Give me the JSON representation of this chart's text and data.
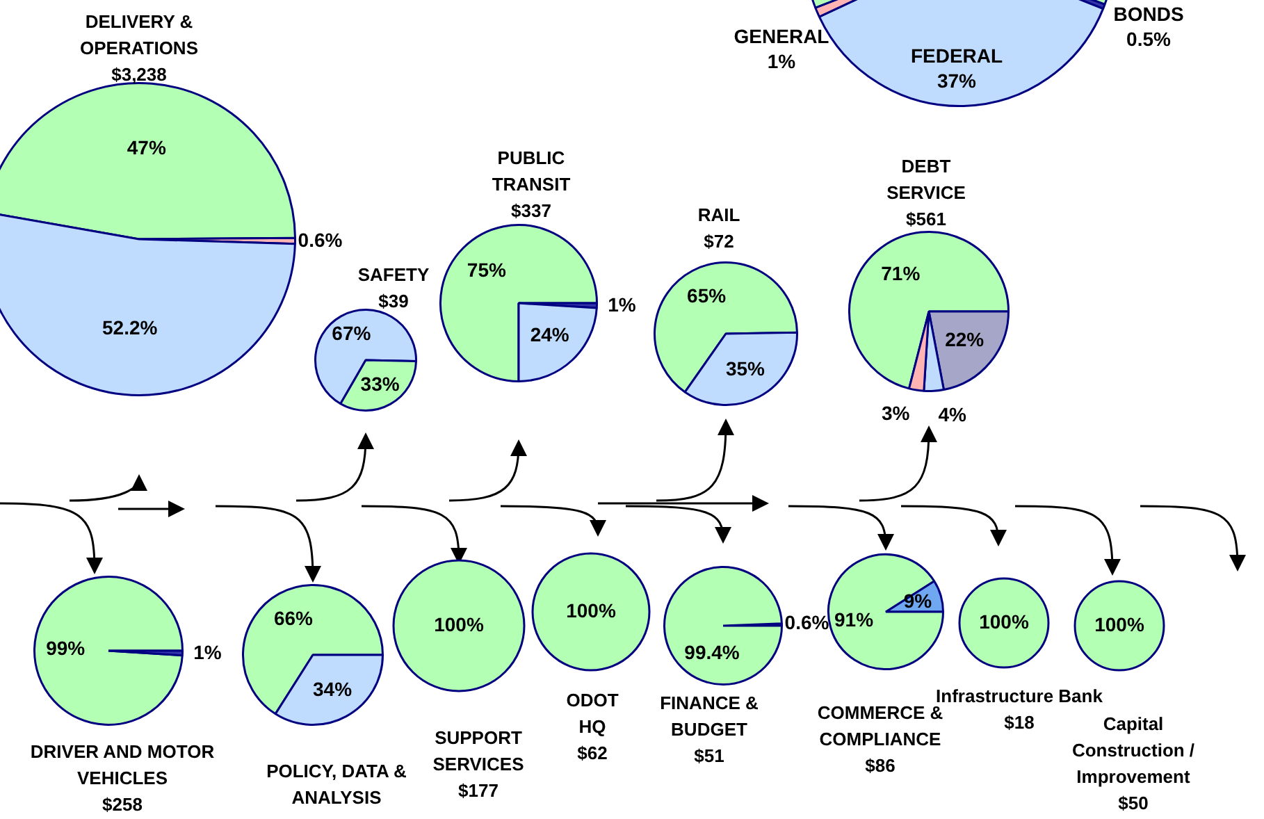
{
  "chart_data": [
    {
      "type": "pie",
      "categories": [
        "BONDS",
        "FEDERAL",
        "GENERAL",
        null
      ],
      "values": [
        0.5,
        37,
        1,
        61.5
      ],
      "value_labels": [
        "0.5%",
        "37%",
        "1%",
        null
      ],
      "colors": [
        "#3333aa",
        "#bfdcff",
        "#ffb3b3",
        "#b3ffb3"
      ]
    },
    {
      "type": "pie",
      "title": "DELIVERY & OPERATIONS",
      "subtitle": "$3,238",
      "categories": [
        null,
        null,
        null
      ],
      "values": [
        47,
        0.6,
        52.2
      ],
      "value_labels": [
        "47%",
        "0.6%",
        "52.2%"
      ],
      "colors": [
        "#b3ffb3",
        "#ffb3b3",
        "#bfdcff"
      ]
    },
    {
      "type": "pie",
      "title": "SAFETY",
      "subtitle": "$39",
      "categories": [
        null,
        null
      ],
      "values": [
        67,
        33
      ],
      "value_labels": [
        "67%",
        "33%"
      ],
      "colors": [
        "#bfdcff",
        "#b3ffb3"
      ]
    },
    {
      "type": "pie",
      "title": "PUBLIC TRANSIT",
      "subtitle": "$337",
      "categories": [
        null,
        null,
        null
      ],
      "values": [
        75,
        1,
        24
      ],
      "value_labels": [
        "75%",
        "1%",
        "24%"
      ],
      "colors": [
        "#b3ffb3",
        "#3333aa",
        "#bfdcff"
      ]
    },
    {
      "type": "pie",
      "title": "RAIL",
      "subtitle": "$72",
      "categories": [
        null,
        null
      ],
      "values": [
        65,
        35
      ],
      "value_labels": [
        "65%",
        "35%"
      ],
      "colors": [
        "#b3ffb3",
        "#bfdcff"
      ]
    },
    {
      "type": "pie",
      "title": "DEBT SERVICE",
      "subtitle": "$561",
      "categories": [
        null,
        null,
        null,
        null
      ],
      "values": [
        71,
        22,
        4,
        3
      ],
      "value_labels": [
        "71%",
        "22%",
        "4%",
        "3%"
      ],
      "colors": [
        "#b3ffb3",
        "#a6a6c8",
        "#bfdcff",
        "#ffb3b3"
      ]
    },
    {
      "type": "pie",
      "title": "DRIVER AND MOTOR VEHICLES",
      "subtitle": "$258",
      "categories": [
        null,
        null
      ],
      "values": [
        99,
        1
      ],
      "value_labels": [
        "99%",
        "1%"
      ],
      "colors": [
        "#b3ffb3",
        "#3333aa"
      ]
    },
    {
      "type": "pie",
      "title": "POLICY, DATA & ANALYSIS",
      "categories": [
        null,
        null
      ],
      "values": [
        66,
        34
      ],
      "value_labels": [
        "66%",
        "34%"
      ],
      "colors": [
        "#b3ffb3",
        "#bfdcff"
      ]
    },
    {
      "type": "pie",
      "title": "SUPPORT SERVICES",
      "subtitle": "$177",
      "categories": [
        null
      ],
      "values": [
        100
      ],
      "value_labels": [
        "100%"
      ],
      "colors": [
        "#b3ffb3"
      ]
    },
    {
      "type": "pie",
      "title": "ODOT HQ",
      "subtitle": "$62",
      "categories": [
        null
      ],
      "values": [
        100
      ],
      "value_labels": [
        "100%"
      ],
      "colors": [
        "#b3ffb3"
      ]
    },
    {
      "type": "pie",
      "title": "FINANCE & BUDGET",
      "subtitle": "$51",
      "categories": [
        null,
        null
      ],
      "values": [
        0.6,
        99.4
      ],
      "value_labels": [
        "0.6%",
        "99.4%"
      ],
      "colors": [
        "#3333aa",
        "#b3ffb3"
      ]
    },
    {
      "type": "pie",
      "title": "COMMERCE & COMPLIANCE",
      "subtitle": "$86",
      "categories": [
        null,
        null
      ],
      "values": [
        9,
        91
      ],
      "value_labels": [
        "9%",
        "91%"
      ],
      "colors": [
        "#6fa8f0",
        "#b3ffb3"
      ]
    },
    {
      "type": "pie",
      "title": "Infrastructure Bank",
      "subtitle": "$18",
      "categories": [
        null
      ],
      "values": [
        100
      ],
      "value_labels": [
        "100%"
      ],
      "colors": [
        "#b3ffb3"
      ]
    },
    {
      "type": "pie",
      "title": "Capital Construction / Improvement",
      "subtitle": "$50",
      "categories": [
        null
      ],
      "values": [
        100
      ],
      "value_labels": [
        "100%"
      ],
      "colors": [
        "#b3ffb3"
      ]
    }
  ]
}
